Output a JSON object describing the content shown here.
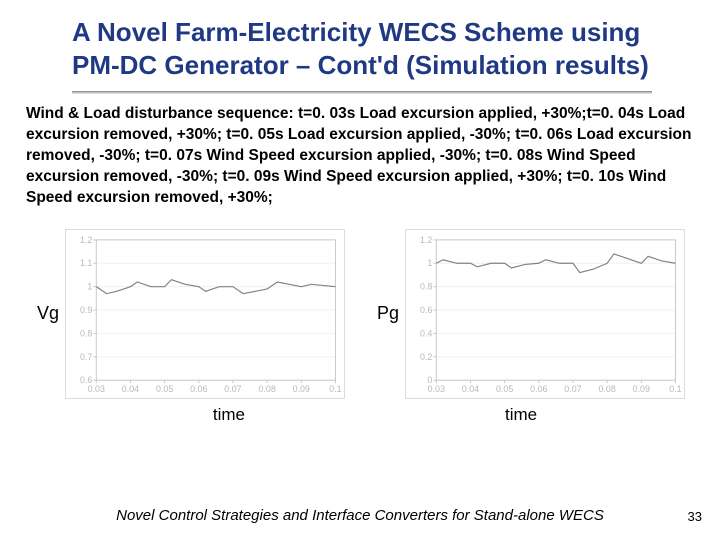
{
  "title": "A Novel Farm-Electricity WECS Scheme using PM-DC Generator – Cont'd (Simulation results)",
  "description": "Wind & Load disturbance sequence: t=0. 03s Load excursion applied, +30%;t=0. 04s Load excursion removed, +30%; t=0. 05s Load excursion applied, -30%; t=0. 06s Load excursion removed, -30%; t=0. 07s Wind Speed excursion applied, -30%; t=0. 08s Wind Speed excursion removed, -30%; t=0. 09s Wind Speed excursion applied, +30%; t=0. 10s Wind Speed excursion removed, +30%;",
  "footer": "Novel Control Strategies and Interface Converters for Stand-alone WECS",
  "page_number": "33",
  "left_chart": {
    "y_label": "Vg",
    "x_label": "time",
    "ylim": [
      0.6,
      1.2
    ],
    "ytick_step": 0.1,
    "yticks": [
      "1.2",
      "1.1",
      "1",
      "0.9",
      "0.8",
      "0.7",
      "0.6"
    ],
    "xlim": [
      0.03,
      0.1
    ],
    "xtick_step": 0.01,
    "xticks": [
      "0.03",
      "0.04",
      "0.05",
      "0.06",
      "0.07",
      "0.08",
      "0.09",
      "0.1"
    ],
    "axis_color": "#c8c8d0",
    "grid_color": "#f0f0f0",
    "tick_label_color": "#b8b8c0",
    "line_color": "#808090",
    "background": "#ffffff",
    "series": [
      {
        "x": 0.03,
        "y": 1.0
      },
      {
        "x": 0.033,
        "y": 0.97
      },
      {
        "x": 0.036,
        "y": 0.98
      },
      {
        "x": 0.04,
        "y": 1.0
      },
      {
        "x": 0.042,
        "y": 1.02
      },
      {
        "x": 0.046,
        "y": 1.0
      },
      {
        "x": 0.05,
        "y": 1.0
      },
      {
        "x": 0.052,
        "y": 1.03
      },
      {
        "x": 0.056,
        "y": 1.01
      },
      {
        "x": 0.06,
        "y": 1.0
      },
      {
        "x": 0.062,
        "y": 0.98
      },
      {
        "x": 0.066,
        "y": 1.0
      },
      {
        "x": 0.07,
        "y": 1.0
      },
      {
        "x": 0.073,
        "y": 0.97
      },
      {
        "x": 0.08,
        "y": 0.99
      },
      {
        "x": 0.083,
        "y": 1.02
      },
      {
        "x": 0.09,
        "y": 1.0
      },
      {
        "x": 0.093,
        "y": 1.01
      },
      {
        "x": 0.1,
        "y": 1.0
      }
    ]
  },
  "right_chart": {
    "y_label": "Pg",
    "x_label": "time",
    "ylim": [
      0,
      1.2
    ],
    "ytick_step": 0.2,
    "yticks": [
      "1.2",
      "1",
      "0.8",
      "0.6",
      "0.4",
      "0.2",
      "0"
    ],
    "xlim": [
      0.03,
      0.1
    ],
    "xtick_step": 0.01,
    "xticks": [
      "0.03",
      "0.04",
      "0.05",
      "0.06",
      "0.07",
      "0.08",
      "0.09",
      "0.1"
    ],
    "axis_color": "#c8c8d0",
    "grid_color": "#f0f0f0",
    "tick_label_color": "#b8b8c0",
    "line_color": "#808090",
    "background": "#ffffff",
    "series": [
      {
        "x": 0.03,
        "y": 1.0
      },
      {
        "x": 0.032,
        "y": 1.03
      },
      {
        "x": 0.036,
        "y": 1.0
      },
      {
        "x": 0.04,
        "y": 1.0
      },
      {
        "x": 0.042,
        "y": 0.97
      },
      {
        "x": 0.046,
        "y": 1.0
      },
      {
        "x": 0.05,
        "y": 1.0
      },
      {
        "x": 0.052,
        "y": 0.96
      },
      {
        "x": 0.056,
        "y": 0.99
      },
      {
        "x": 0.06,
        "y": 1.0
      },
      {
        "x": 0.062,
        "y": 1.03
      },
      {
        "x": 0.066,
        "y": 1.0
      },
      {
        "x": 0.07,
        "y": 1.0
      },
      {
        "x": 0.072,
        "y": 0.92
      },
      {
        "x": 0.076,
        "y": 0.95
      },
      {
        "x": 0.08,
        "y": 1.0
      },
      {
        "x": 0.082,
        "y": 1.08
      },
      {
        "x": 0.086,
        "y": 1.04
      },
      {
        "x": 0.09,
        "y": 1.0
      },
      {
        "x": 0.092,
        "y": 1.06
      },
      {
        "x": 0.096,
        "y": 1.02
      },
      {
        "x": 0.1,
        "y": 1.0
      }
    ]
  }
}
